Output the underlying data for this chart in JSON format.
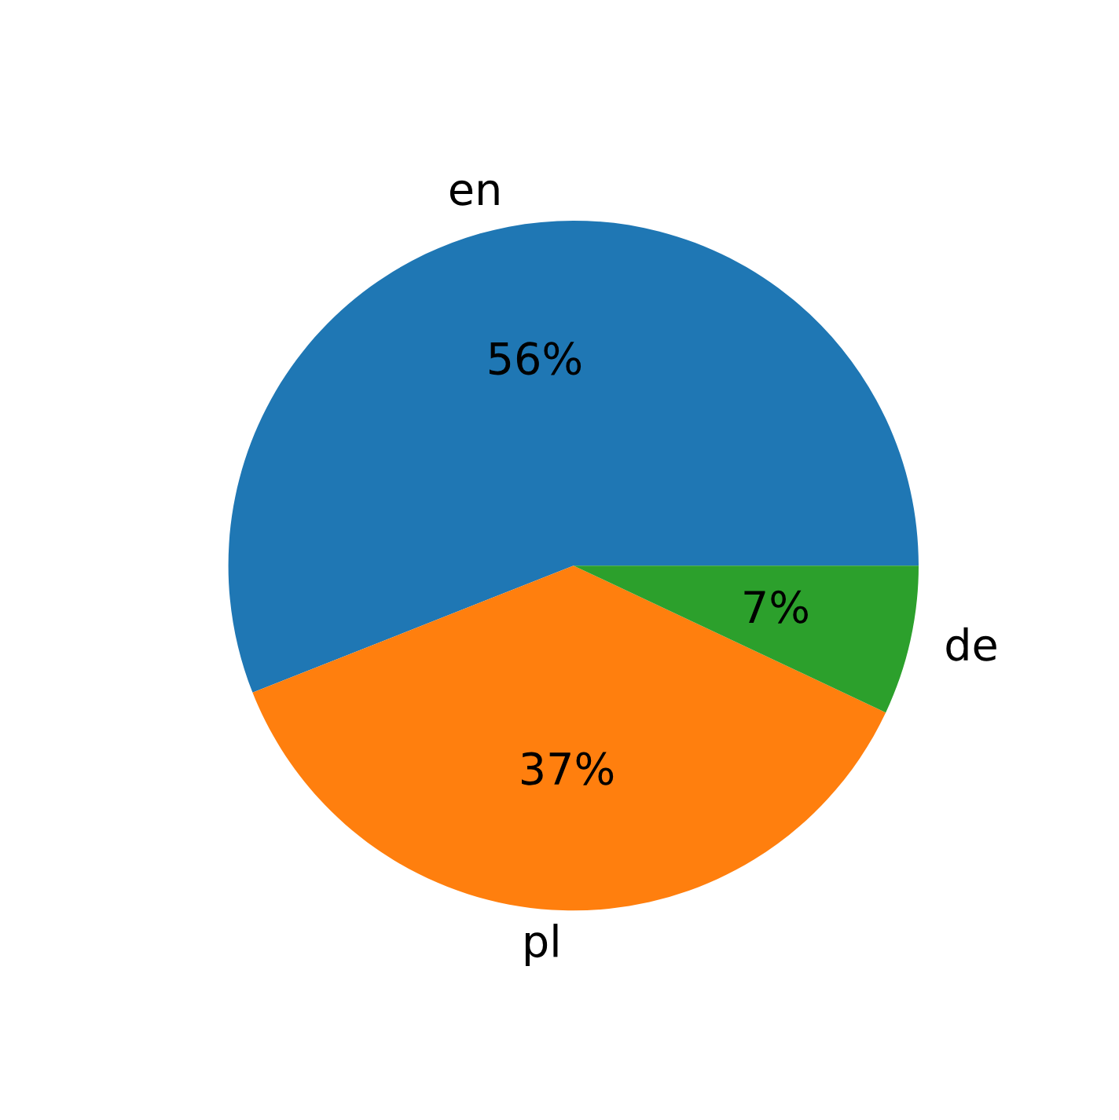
{
  "chart_data": {
    "type": "pie",
    "categories": [
      "en",
      "pl",
      "de"
    ],
    "values": [
      56,
      37,
      7
    ],
    "colors": [
      "#1f77b4",
      "#ff7f0e",
      "#2ca02c"
    ],
    "value_labels": [
      "56%",
      "37%",
      "7%"
    ]
  }
}
